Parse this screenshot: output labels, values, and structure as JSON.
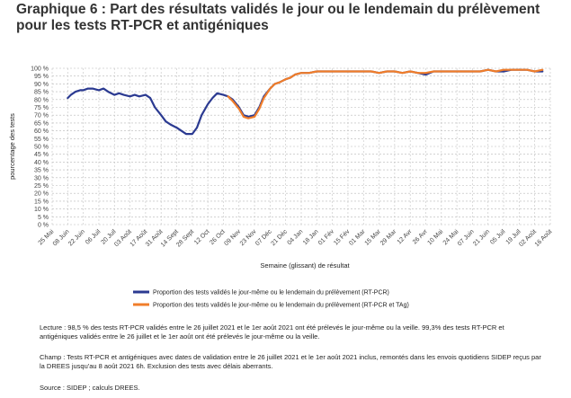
{
  "title": "Graphique 6 : Part des résultats validés le jour ou le lendemain du prélèvement pour les tests RT-PCR et antigéniques",
  "chart_data": {
    "type": "line",
    "ylabel": "pourcentage des tests",
    "xlabel": "Semaine (glissant) de résultat",
    "ylim": [
      0,
      100
    ],
    "yticks": [
      "0 %",
      "5 %",
      "10 %",
      "15 %",
      "20 %",
      "25 %",
      "30 %",
      "35 %",
      "40 %",
      "45 %",
      "50 %",
      "55 %",
      "60 %",
      "65 %",
      "70 %",
      "75 %",
      "80 %",
      "85 %",
      "90 %",
      "95 %",
      "100 %"
    ],
    "xticks": [
      "25 Mai",
      "08 Juin",
      "22 Juin",
      "06 Juil",
      "20 Juil",
      "03 Août",
      "17 Août",
      "31 Août",
      "14 Sept",
      "28 Sept",
      "12 Oct",
      "26 Oct",
      "09 Nov",
      "23 Nov",
      "07 Déc",
      "21 Déc",
      "04 Jan",
      "18 Jan",
      "01 Fév",
      "15 Fév",
      "01 Mar",
      "15 Mar",
      "29 Mar",
      "12 Avr",
      "26 Avr",
      "10 Mai",
      "24 Mai",
      "07 Juin",
      "21 Juin",
      "05 Juil",
      "19 Juil",
      "02 Août",
      "16 Août"
    ],
    "x_units": "index of tick (weekly steps of 2 weeks per tick)",
    "grid": true,
    "legend_position": "bottom",
    "series": [
      {
        "name": "Proportion des tests validés le jour-même ou le lendemain du prélèvement (RT-PCR)",
        "color": "#2b3a91",
        "x": [
          1.0,
          1.2,
          1.5,
          1.8,
          2.0,
          2.3,
          2.6,
          3.0,
          3.3,
          3.6,
          4.0,
          4.3,
          4.6,
          5.0,
          5.3,
          5.6,
          6.0,
          6.3,
          6.6,
          7.0,
          7.3,
          7.6,
          8.0,
          8.3,
          8.6,
          9.0,
          9.3,
          9.6,
          10.0,
          10.3,
          10.6,
          11.0,
          11.3,
          11.6,
          12.0,
          12.3,
          12.6,
          13.0,
          13.3,
          13.6,
          14.0,
          14.3,
          14.6,
          15.0,
          15.3,
          15.6,
          16.0,
          16.5,
          17.0,
          17.5,
          18.0,
          18.5,
          19.0,
          19.5,
          20.0,
          20.5,
          21.0,
          21.5,
          22.0,
          22.5,
          23.0,
          23.5,
          24.0,
          24.5,
          25.0,
          25.5,
          26.0,
          26.5,
          27.0,
          27.5,
          28.0,
          28.5,
          29.0,
          29.5,
          30.0,
          30.5,
          31.0,
          31.5
        ],
        "values": [
          81,
          83,
          85,
          86,
          86,
          87,
          87,
          86,
          87,
          85,
          83,
          84,
          83,
          82,
          83,
          82,
          83,
          81,
          75,
          70,
          66,
          64,
          62,
          60,
          58,
          58,
          62,
          70,
          77,
          81,
          84,
          83,
          82,
          80,
          75,
          70,
          69,
          70,
          75,
          82,
          87,
          90,
          91,
          93,
          94,
          96,
          97,
          97,
          98,
          98,
          98,
          98,
          98,
          98,
          98,
          98,
          97,
          98,
          98,
          97,
          98,
          97,
          96,
          98,
          98,
          98,
          98,
          98,
          98,
          98,
          99,
          98,
          98,
          99,
          99,
          99,
          98,
          98
        ]
      },
      {
        "name": "Proportion des tests validés le jour-même ou le lendemain du prélèvement (RT-PCR et TAg)",
        "color": "#f07d2a",
        "x": [
          11.3,
          11.6,
          12.0,
          12.3,
          12.6,
          13.0,
          13.3,
          13.6,
          14.0,
          14.3,
          14.6,
          15.0,
          15.3,
          15.6,
          16.0,
          16.5,
          17.0,
          17.5,
          18.0,
          18.5,
          19.0,
          19.5,
          20.0,
          20.5,
          21.0,
          21.5,
          22.0,
          22.5,
          23.0,
          23.5,
          24.0,
          24.5,
          25.0,
          25.5,
          26.0,
          26.5,
          27.0,
          27.5,
          28.0,
          28.5,
          29.0,
          29.5,
          30.0,
          30.5,
          31.0,
          31.5
        ],
        "values": [
          82,
          79,
          74,
          69,
          68,
          69,
          74,
          81,
          87,
          90,
          91,
          93,
          94,
          96,
          97,
          97,
          98,
          98,
          98,
          98,
          98,
          98,
          98,
          98,
          97,
          98,
          98,
          97,
          98,
          97,
          97,
          98,
          98,
          98,
          98,
          98,
          98,
          98,
          99,
          98,
          99,
          99,
          99,
          99,
          98,
          99
        ]
      }
    ]
  },
  "legend": [
    {
      "label": "Proportion des tests validés le jour-même ou le lendemain du prélèvement (RT-PCR)",
      "color": "#2b3a91"
    },
    {
      "label": "Proportion des tests validés le jour-même ou le lendemain du prélèvement (RT-PCR et TAg)",
      "color": "#f07d2a"
    }
  ],
  "notes": {
    "lecture": "Lecture : 98,5 % des tests RT-PCR validés entre le 26 juillet 2021 et le 1er août 2021 ont été prélevés le jour-même ou la veille. 99,3% des tests RT-PCR et antigéniques validés entre le 26 juillet et le 1er août ont été prélevés le jour-même ou la veille.",
    "champ": "Champ : Tests RT-PCR et antigéniques avec dates de validation entre le 26 juillet 2021 et le 1er août 2021 inclus, remontés dans les envois quotidiens SIDEP reçus par la DREES jusqu'au 8 août 2021 6h. Exclusion des tests avec délais aberrants.",
    "source": "Source : SIDEP ; calculs DREES."
  }
}
